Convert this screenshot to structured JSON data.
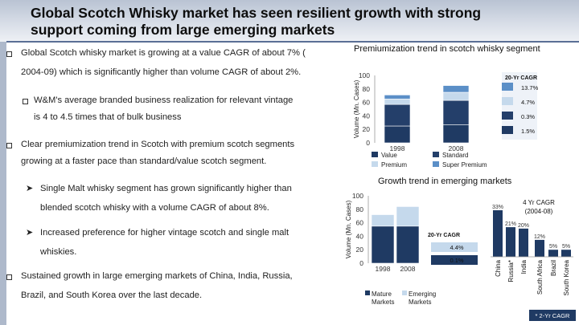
{
  "slide": {
    "title_line1": "Global Scotch Whisky market has seen resilient growth with strong",
    "title_line2": "support coming from large emerging markets"
  },
  "bullets": [
    {
      "level": 1,
      "lines": [
        "Global Scotch whisky market is growing at a value CAGR of about 7% (",
        "2004-09) which is significantly higher than volume CAGR of about 2%."
      ]
    },
    {
      "level": 2,
      "lines": [
        "W&M's average branded business realization for relevant vintage",
        "is 4 to 4.5 times that of bulk business"
      ]
    },
    {
      "level": 1,
      "lines": [
        "Clear premiumization trend in Scotch with premium scotch segments",
        "growing at a faster pace than standard/value scotch segment."
      ]
    },
    {
      "level": 3,
      "lines": [
        "Single Malt whisky segment has grown significantly higher than",
        "blended scotch whisky with a volume CAGR of about 8%."
      ]
    },
    {
      "level": 3,
      "lines": [
        "Increased preference for higher vintage scotch and single malt",
        "whiskies."
      ]
    },
    {
      "level": 1,
      "lines": [
        "Sustained growth in large emerging markets of China, India, Russia,",
        "Brazil, and South Korea over the last decade."
      ]
    }
  ],
  "chart_data": [
    {
      "type": "bar",
      "stacked": true,
      "title": "Premiumization trend in scotch whisky segment",
      "ylabel": "Volume (Mn. Cases)",
      "ylim": [
        0,
        100
      ],
      "yticks": [
        "0",
        "20",
        "40",
        "60",
        "80",
        "100"
      ],
      "categories": [
        "1998",
        "2008"
      ],
      "series": [
        {
          "name": "Value",
          "color": "#1f3a63",
          "values": [
            25,
            27
          ]
        },
        {
          "name": "Standard",
          "color": "#243f6a",
          "values": [
            32,
            36
          ]
        },
        {
          "name": "Premium",
          "color": "#c5d9ec",
          "values": [
            8,
            12
          ]
        },
        {
          "name": "Super Premium",
          "color": "#5b8fc7",
          "values": [
            6,
            10
          ]
        }
      ],
      "cagr_header": "20-Yr CAGR",
      "cagr_values": [
        "13.7%",
        "4.7%",
        "0.3%",
        "1.5%"
      ],
      "cagr_colors": [
        "#5b8fc7",
        "#c5d9ec",
        "#243f6a",
        "#1f3a63"
      ]
    },
    {
      "type": "bar",
      "stacked": true,
      "title": "Growth trend in emerging markets",
      "ylabel": "Volume (Mn. Cases)",
      "ylim": [
        0,
        100
      ],
      "yticks": [
        "0",
        "20",
        "40",
        "60",
        "80",
        "100"
      ],
      "categories": [
        "1998",
        "2008"
      ],
      "series": [
        {
          "name": "Mature Markets",
          "color": "#1f3a63",
          "values": [
            55,
            55
          ]
        },
        {
          "name": "Emerging Markets",
          "color": "#c5d9ec",
          "values": [
            17,
            29
          ]
        }
      ],
      "cagr_header": "20-Yr CAGR",
      "cagr_values": [
        "4.4%",
        "0.1%"
      ],
      "cagr_colors": [
        "#c5d9ec",
        "#1f3a63"
      ]
    },
    {
      "type": "bar",
      "title": "4 Yr CAGR (2004-08)",
      "categories": [
        "China",
        "Russia*",
        "India",
        "South Africa",
        "Brazil",
        "South Korea"
      ],
      "values": [
        33,
        21,
        20,
        12,
        5,
        5
      ],
      "labels": [
        "33%",
        "21%",
        "20%",
        "12%",
        "5%",
        "5%"
      ],
      "color": "#1f3a63",
      "footnote": "* 2-Yr CAGR"
    }
  ]
}
